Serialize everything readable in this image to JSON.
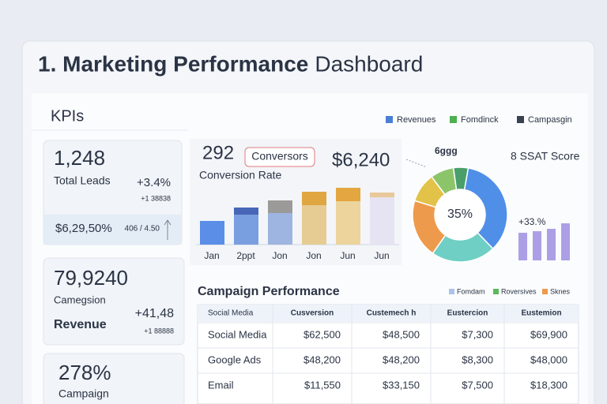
{
  "header": {
    "title_bold": "1. Marketing Performance",
    "title_rest": "Dashboard"
  },
  "kpis": {
    "title": "KPIs",
    "cards": [
      {
        "value": "1,248",
        "label": "Total Leads",
        "change": "+3.4%",
        "note": "+1 38838",
        "footer_value": "$6,29,50%",
        "footer_note": "406 / 4.50"
      },
      {
        "value": "79,9240",
        "label": "Camegsion",
        "sublabel": "Revenue",
        "change": "+41,48",
        "note": "+1 88888"
      },
      {
        "value": "278%",
        "label": "Campaign"
      }
    ]
  },
  "legend": [
    {
      "name": "Revenues",
      "color": "#4a7fd6"
    },
    {
      "name": "Fomdinck",
      "color": "#4caf50"
    },
    {
      "name": "Campasgin",
      "color": "#3a4252"
    }
  ],
  "conversion": {
    "count": "292",
    "badge": "Conversors",
    "label": "Conversion Rate",
    "amount": "$6,240"
  },
  "chart_data": [
    {
      "type": "bar",
      "stacked": true,
      "categories": [
        "Jan",
        "2ppt",
        "Jon",
        "Jon",
        "Jun",
        "Jun"
      ],
      "series": [
        {
          "colors": [
            "#5b8ee6",
            "#7a9fe0",
            "#9db5e0",
            "#e6cc92",
            "#ecd49c",
            "#e6e3f2"
          ],
          "values": [
            30,
            38,
            40,
            50,
            55,
            60
          ]
        },
        {
          "colors": [
            "#5b8ee6",
            "#4766b8",
            "#9c9a98",
            "#e0a642",
            "#e3a640",
            "#e9c89a"
          ],
          "values": [
            null,
            9,
            16,
            17,
            17,
            6
          ]
        }
      ]
    },
    {
      "type": "pie",
      "donut": true,
      "title": "8 SSAT Score",
      "top_label": "6ggg",
      "center_label": "35%",
      "values": [
        35,
        22,
        20,
        10,
        8,
        5
      ],
      "colors": [
        "#4f8fe8",
        "#6fcfc4",
        "#ee9a4c",
        "#e3c24a",
        "#8cc46a",
        "#4a9e6a"
      ]
    },
    {
      "type": "bar",
      "annotation": "+33.%",
      "values": [
        35,
        37,
        40,
        47
      ],
      "color": "#ac9fe6"
    }
  ],
  "campaign": {
    "title": "Campaign Performance",
    "legend": [
      {
        "name": "Fomdam",
        "color": "#a9c3ea"
      },
      {
        "name": "Roversives",
        "color": "#5cb85c"
      },
      {
        "name": "Sknes",
        "color": "#ee9a4c"
      }
    ],
    "table": {
      "header": [
        "Social Media",
        "Cusversion",
        "Custemech h",
        "Eustercion",
        "Eustemion"
      ],
      "rows": [
        [
          "Social Media",
          "$62,500",
          "$48,500",
          "$7,300",
          "$69,900"
        ],
        [
          "Google Ads",
          "$48,200",
          "$48,200",
          "$8,300",
          "$48,000"
        ],
        [
          "Email",
          "$11,550",
          "$33,150",
          "$7,500",
          "$18,300"
        ]
      ]
    }
  }
}
